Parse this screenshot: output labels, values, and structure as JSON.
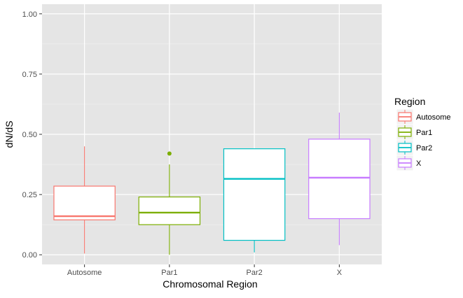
{
  "chart_data": {
    "type": "boxplot",
    "xlabel": "Chromosomal Region",
    "ylabel": "dN/dS",
    "categories": [
      "Autosome",
      "Par1",
      "Par2",
      "X"
    ],
    "yticks": [
      0.0,
      0.25,
      0.5,
      0.75,
      1.0
    ],
    "ytick_labels": [
      "0.00",
      "0.25",
      "0.50",
      "0.75",
      "1.00"
    ],
    "ylim": [
      -0.04,
      1.04
    ],
    "legend": {
      "title": "Region",
      "position": "right",
      "entries": [
        "Autosome",
        "Par1",
        "Par2",
        "X"
      ]
    },
    "colors": {
      "Autosome": "#F8766D",
      "Par1": "#7CAE00",
      "Par2": "#00BFC4",
      "X": "#C77CFF"
    },
    "panel_background": "#E5E5E5",
    "grid": true,
    "boxes": [
      {
        "name": "Autosome",
        "whisker_low": 0.005,
        "q1": 0.145,
        "median": 0.16,
        "q3": 0.285,
        "whisker_high": 0.45,
        "outliers": []
      },
      {
        "name": "Par1",
        "whisker_low": 0.0,
        "q1": 0.125,
        "median": 0.175,
        "q3": 0.24,
        "whisker_high": 0.375,
        "outliers": [
          0.42
        ]
      },
      {
        "name": "Par2",
        "whisker_low": 0.01,
        "q1": 0.06,
        "median": 0.315,
        "q3": 0.44,
        "whisker_high": 0.44,
        "outliers": []
      },
      {
        "name": "X",
        "whisker_low": 0.04,
        "q1": 0.15,
        "median": 0.32,
        "q3": 0.48,
        "whisker_high": 0.59,
        "outliers": []
      }
    ]
  }
}
